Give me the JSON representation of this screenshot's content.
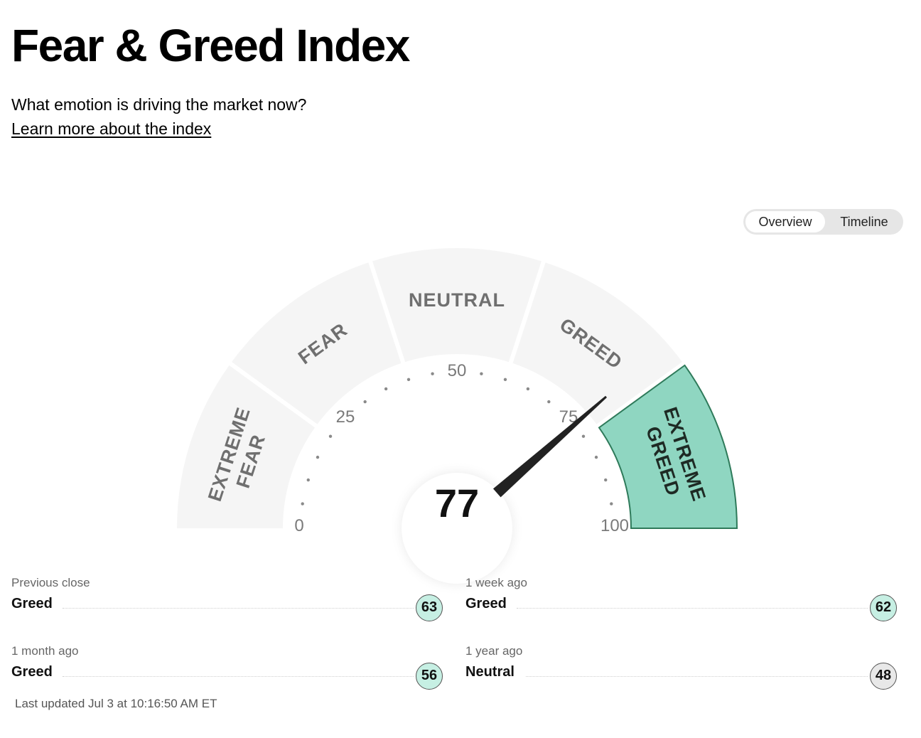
{
  "header": {
    "title": "Fear & Greed Index",
    "subtitle": "What emotion is driving the market now?",
    "learn_more": "Learn more about the index"
  },
  "view_toggle": {
    "options": [
      "Overview",
      "Timeline"
    ],
    "selected": "Overview"
  },
  "gauge": {
    "score": 77,
    "segments": [
      "EXTREME FEAR",
      "FEAR",
      "NEUTRAL",
      "GREED",
      "EXTREME GREED"
    ],
    "active_segment": "EXTREME GREED",
    "scale_labels": [
      "0",
      "25",
      "50",
      "75",
      "100"
    ],
    "colors": {
      "inactive": "#f5f5f5",
      "active_fill": "#8fd6c1",
      "active_stroke": "#2e7a5a",
      "needle": "#222222"
    }
  },
  "history": [
    {
      "label": "Previous close",
      "rating": "Greed",
      "value": "63",
      "color": "#c6efe3"
    },
    {
      "label": "1 week ago",
      "rating": "Greed",
      "value": "62",
      "color": "#c6efe3"
    },
    {
      "label": "1 month ago",
      "rating": "Greed",
      "value": "56",
      "color": "#c6efe3"
    },
    {
      "label": "1 year ago",
      "rating": "Neutral",
      "value": "48",
      "color": "#e8e8e8"
    }
  ],
  "last_updated": "Last updated Jul 3 at 10:16:50 AM ET"
}
